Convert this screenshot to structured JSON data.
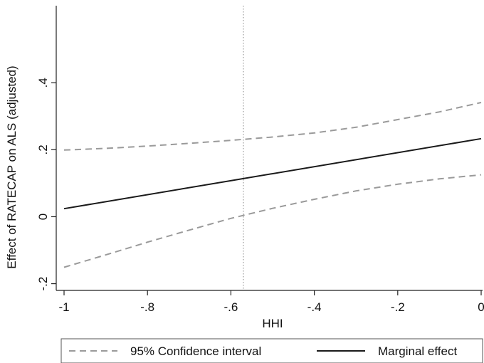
{
  "chart_data": {
    "type": "line",
    "xlabel": "HHI",
    "ylabel": "Effect of RATECAP on ALS (adjusted)",
    "xlim": [
      -1,
      0
    ],
    "ylim": [
      -0.22,
      0.63
    ],
    "x_ticks": [
      -1,
      -0.8,
      -0.6,
      -0.4,
      -0.2,
      0
    ],
    "x_tick_labels": [
      "-1",
      "-.8",
      "-.6",
      "-.4",
      "-.2",
      "0"
    ],
    "y_ticks": [
      -0.2,
      0,
      0.2,
      0.4
    ],
    "y_tick_labels": [
      "-.2",
      "0",
      ".2",
      ".4"
    ],
    "reference_line_x": -0.57,
    "grid": false,
    "legend_position": "bottom",
    "series": [
      {
        "name": "95% Confidence interval",
        "style": "dashed",
        "color": "#9a9a9a",
        "x": [
          -1,
          -0.9,
          -0.8,
          -0.7,
          -0.6,
          -0.5,
          -0.4,
          -0.3,
          -0.2,
          -0.1,
          0
        ],
        "values": [
          0.199,
          0.204,
          0.211,
          0.219,
          0.228,
          0.238,
          0.25,
          0.267,
          0.29,
          0.313,
          0.341
        ]
      },
      {
        "name": "",
        "style": "dashed",
        "color": "#9a9a9a",
        "x": [
          -1,
          -0.9,
          -0.8,
          -0.7,
          -0.6,
          -0.5,
          -0.4,
          -0.3,
          -0.2,
          -0.1,
          0
        ],
        "values": [
          -0.151,
          -0.114,
          -0.076,
          -0.04,
          -0.005,
          0.025,
          0.052,
          0.077,
          0.097,
          0.113,
          0.125
        ]
      },
      {
        "name": "Marginal effect",
        "style": "solid",
        "color": "#1a1a1a",
        "x": [
          -1,
          0
        ],
        "values": [
          0.024,
          0.233
        ]
      }
    ]
  }
}
